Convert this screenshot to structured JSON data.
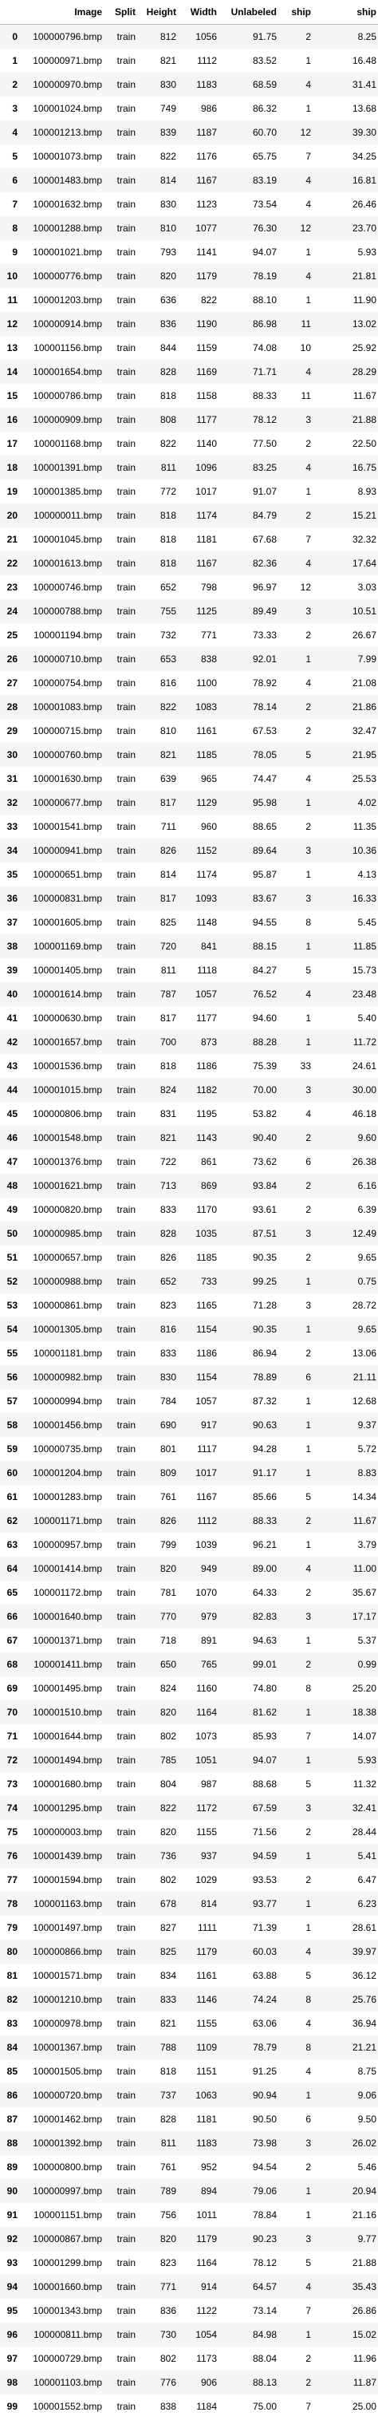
{
  "columns": [
    "",
    "Image",
    "Split",
    "Height",
    "Width",
    "Unlabeled",
    "ship",
    "ship"
  ],
  "rows": [
    [
      "0",
      "100000796.bmp",
      "train",
      "812",
      "1056",
      "91.75",
      "2",
      "8.25"
    ],
    [
      "1",
      "100000971.bmp",
      "train",
      "821",
      "1112",
      "83.52",
      "1",
      "16.48"
    ],
    [
      "2",
      "100000970.bmp",
      "train",
      "830",
      "1183",
      "68.59",
      "4",
      "31.41"
    ],
    [
      "3",
      "100001024.bmp",
      "train",
      "749",
      "986",
      "86.32",
      "1",
      "13.68"
    ],
    [
      "4",
      "100001213.bmp",
      "train",
      "839",
      "1187",
      "60.70",
      "12",
      "39.30"
    ],
    [
      "5",
      "100001073.bmp",
      "train",
      "822",
      "1176",
      "65.75",
      "7",
      "34.25"
    ],
    [
      "6",
      "100001483.bmp",
      "train",
      "814",
      "1167",
      "83.19",
      "4",
      "16.81"
    ],
    [
      "7",
      "100001632.bmp",
      "train",
      "830",
      "1123",
      "73.54",
      "4",
      "26.46"
    ],
    [
      "8",
      "100001288.bmp",
      "train",
      "810",
      "1077",
      "76.30",
      "12",
      "23.70"
    ],
    [
      "9",
      "100001021.bmp",
      "train",
      "793",
      "1141",
      "94.07",
      "1",
      "5.93"
    ],
    [
      "10",
      "100000776.bmp",
      "train",
      "820",
      "1179",
      "78.19",
      "4",
      "21.81"
    ],
    [
      "11",
      "100001203.bmp",
      "train",
      "636",
      "822",
      "88.10",
      "1",
      "11.90"
    ],
    [
      "12",
      "100000914.bmp",
      "train",
      "836",
      "1190",
      "86.98",
      "11",
      "13.02"
    ],
    [
      "13",
      "100001156.bmp",
      "train",
      "844",
      "1159",
      "74.08",
      "10",
      "25.92"
    ],
    [
      "14",
      "100001654.bmp",
      "train",
      "828",
      "1169",
      "71.71",
      "4",
      "28.29"
    ],
    [
      "15",
      "100000786.bmp",
      "train",
      "818",
      "1158",
      "88.33",
      "11",
      "11.67"
    ],
    [
      "16",
      "100000909.bmp",
      "train",
      "808",
      "1177",
      "78.12",
      "3",
      "21.88"
    ],
    [
      "17",
      "100001168.bmp",
      "train",
      "822",
      "1140",
      "77.50",
      "2",
      "22.50"
    ],
    [
      "18",
      "100001391.bmp",
      "train",
      "811",
      "1096",
      "83.25",
      "4",
      "16.75"
    ],
    [
      "19",
      "100001385.bmp",
      "train",
      "772",
      "1017",
      "91.07",
      "1",
      "8.93"
    ],
    [
      "20",
      "100000011.bmp",
      "train",
      "818",
      "1174",
      "84.79",
      "2",
      "15.21"
    ],
    [
      "21",
      "100001045.bmp",
      "train",
      "818",
      "1181",
      "67.68",
      "7",
      "32.32"
    ],
    [
      "22",
      "100001613.bmp",
      "train",
      "818",
      "1167",
      "82.36",
      "4",
      "17.64"
    ],
    [
      "23",
      "100000746.bmp",
      "train",
      "652",
      "798",
      "96.97",
      "12",
      "3.03"
    ],
    [
      "24",
      "100000788.bmp",
      "train",
      "755",
      "1125",
      "89.49",
      "3",
      "10.51"
    ],
    [
      "25",
      "100001194.bmp",
      "train",
      "732",
      "771",
      "73.33",
      "2",
      "26.67"
    ],
    [
      "26",
      "100000710.bmp",
      "train",
      "653",
      "838",
      "92.01",
      "1",
      "7.99"
    ],
    [
      "27",
      "100000754.bmp",
      "train",
      "816",
      "1100",
      "78.92",
      "4",
      "21.08"
    ],
    [
      "28",
      "100001083.bmp",
      "train",
      "822",
      "1083",
      "78.14",
      "2",
      "21.86"
    ],
    [
      "29",
      "100000715.bmp",
      "train",
      "810",
      "1161",
      "67.53",
      "2",
      "32.47"
    ],
    [
      "30",
      "100000760.bmp",
      "train",
      "821",
      "1185",
      "78.05",
      "5",
      "21.95"
    ],
    [
      "31",
      "100001630.bmp",
      "train",
      "639",
      "965",
      "74.47",
      "4",
      "25.53"
    ],
    [
      "32",
      "100000677.bmp",
      "train",
      "817",
      "1129",
      "95.98",
      "1",
      "4.02"
    ],
    [
      "33",
      "100001541.bmp",
      "train",
      "711",
      "960",
      "88.65",
      "2",
      "11.35"
    ],
    [
      "34",
      "100000941.bmp",
      "train",
      "826",
      "1152",
      "89.64",
      "3",
      "10.36"
    ],
    [
      "35",
      "100000651.bmp",
      "train",
      "814",
      "1174",
      "95.87",
      "1",
      "4.13"
    ],
    [
      "36",
      "100000831.bmp",
      "train",
      "817",
      "1093",
      "83.67",
      "3",
      "16.33"
    ],
    [
      "37",
      "100001605.bmp",
      "train",
      "825",
      "1148",
      "94.55",
      "8",
      "5.45"
    ],
    [
      "38",
      "100001169.bmp",
      "train",
      "720",
      "841",
      "88.15",
      "1",
      "11.85"
    ],
    [
      "39",
      "100001405.bmp",
      "train",
      "811",
      "1118",
      "84.27",
      "5",
      "15.73"
    ],
    [
      "40",
      "100001614.bmp",
      "train",
      "787",
      "1057",
      "76.52",
      "4",
      "23.48"
    ],
    [
      "41",
      "100000630.bmp",
      "train",
      "817",
      "1177",
      "94.60",
      "1",
      "5.40"
    ],
    [
      "42",
      "100001657.bmp",
      "train",
      "700",
      "873",
      "88.28",
      "1",
      "11.72"
    ],
    [
      "43",
      "100001536.bmp",
      "train",
      "818",
      "1186",
      "75.39",
      "33",
      "24.61"
    ],
    [
      "44",
      "100001015.bmp",
      "train",
      "824",
      "1182",
      "70.00",
      "3",
      "30.00"
    ],
    [
      "45",
      "100000806.bmp",
      "train",
      "831",
      "1195",
      "53.82",
      "4",
      "46.18"
    ],
    [
      "46",
      "100001548.bmp",
      "train",
      "821",
      "1143",
      "90.40",
      "2",
      "9.60"
    ],
    [
      "47",
      "100001376.bmp",
      "train",
      "722",
      "861",
      "73.62",
      "6",
      "26.38"
    ],
    [
      "48",
      "100001621.bmp",
      "train",
      "713",
      "869",
      "93.84",
      "2",
      "6.16"
    ],
    [
      "49",
      "100000820.bmp",
      "train",
      "833",
      "1170",
      "93.61",
      "2",
      "6.39"
    ],
    [
      "50",
      "100000985.bmp",
      "train",
      "828",
      "1035",
      "87.51",
      "3",
      "12.49"
    ],
    [
      "51",
      "100000657.bmp",
      "train",
      "826",
      "1185",
      "90.35",
      "2",
      "9.65"
    ],
    [
      "52",
      "100000988.bmp",
      "train",
      "652",
      "733",
      "99.25",
      "1",
      "0.75"
    ],
    [
      "53",
      "100000861.bmp",
      "train",
      "823",
      "1165",
      "71.28",
      "3",
      "28.72"
    ],
    [
      "54",
      "100001305.bmp",
      "train",
      "816",
      "1154",
      "90.35",
      "1",
      "9.65"
    ],
    [
      "55",
      "100001181.bmp",
      "train",
      "833",
      "1186",
      "86.94",
      "2",
      "13.06"
    ],
    [
      "56",
      "100000982.bmp",
      "train",
      "830",
      "1154",
      "78.89",
      "6",
      "21.11"
    ],
    [
      "57",
      "100000994.bmp",
      "train",
      "784",
      "1057",
      "87.32",
      "1",
      "12.68"
    ],
    [
      "58",
      "100001456.bmp",
      "train",
      "690",
      "917",
      "90.63",
      "1",
      "9.37"
    ],
    [
      "59",
      "100000735.bmp",
      "train",
      "801",
      "1117",
      "94.28",
      "1",
      "5.72"
    ],
    [
      "60",
      "100001204.bmp",
      "train",
      "809",
      "1017",
      "91.17",
      "1",
      "8.83"
    ],
    [
      "61",
      "100001283.bmp",
      "train",
      "761",
      "1167",
      "85.66",
      "5",
      "14.34"
    ],
    [
      "62",
      "100001171.bmp",
      "train",
      "826",
      "1112",
      "88.33",
      "2",
      "11.67"
    ],
    [
      "63",
      "100000957.bmp",
      "train",
      "799",
      "1039",
      "96.21",
      "1",
      "3.79"
    ],
    [
      "64",
      "100001414.bmp",
      "train",
      "820",
      "949",
      "89.00",
      "4",
      "11.00"
    ],
    [
      "65",
      "100001172.bmp",
      "train",
      "781",
      "1070",
      "64.33",
      "2",
      "35.67"
    ],
    [
      "66",
      "100001640.bmp",
      "train",
      "770",
      "979",
      "82.83",
      "3",
      "17.17"
    ],
    [
      "67",
      "100001371.bmp",
      "train",
      "718",
      "891",
      "94.63",
      "1",
      "5.37"
    ],
    [
      "68",
      "100001411.bmp",
      "train",
      "650",
      "765",
      "99.01",
      "2",
      "0.99"
    ],
    [
      "69",
      "100001495.bmp",
      "train",
      "824",
      "1160",
      "74.80",
      "8",
      "25.20"
    ],
    [
      "70",
      "100001510.bmp",
      "train",
      "820",
      "1164",
      "81.62",
      "1",
      "18.38"
    ],
    [
      "71",
      "100001644.bmp",
      "train",
      "802",
      "1073",
      "85.93",
      "7",
      "14.07"
    ],
    [
      "72",
      "100001494.bmp",
      "train",
      "785",
      "1051",
      "94.07",
      "1",
      "5.93"
    ],
    [
      "73",
      "100001680.bmp",
      "train",
      "804",
      "987",
      "88.68",
      "5",
      "11.32"
    ],
    [
      "74",
      "100001295.bmp",
      "train",
      "822",
      "1172",
      "67.59",
      "3",
      "32.41"
    ],
    [
      "75",
      "100000003.bmp",
      "train",
      "820",
      "1155",
      "71.56",
      "2",
      "28.44"
    ],
    [
      "76",
      "100001439.bmp",
      "train",
      "736",
      "937",
      "94.59",
      "1",
      "5.41"
    ],
    [
      "77",
      "100001594.bmp",
      "train",
      "802",
      "1029",
      "93.53",
      "2",
      "6.47"
    ],
    [
      "78",
      "100001163.bmp",
      "train",
      "678",
      "814",
      "93.77",
      "1",
      "6.23"
    ],
    [
      "79",
      "100001497.bmp",
      "train",
      "827",
      "1111",
      "71.39",
      "1",
      "28.61"
    ],
    [
      "80",
      "100000866.bmp",
      "train",
      "825",
      "1179",
      "60.03",
      "4",
      "39.97"
    ],
    [
      "81",
      "100001571.bmp",
      "train",
      "834",
      "1161",
      "63.88",
      "5",
      "36.12"
    ],
    [
      "82",
      "100001210.bmp",
      "train",
      "833",
      "1146",
      "74.24",
      "8",
      "25.76"
    ],
    [
      "83",
      "100000978.bmp",
      "train",
      "821",
      "1155",
      "63.06",
      "4",
      "36.94"
    ],
    [
      "84",
      "100001367.bmp",
      "train",
      "788",
      "1109",
      "78.79",
      "8",
      "21.21"
    ],
    [
      "85",
      "100001505.bmp",
      "train",
      "818",
      "1151",
      "91.25",
      "4",
      "8.75"
    ],
    [
      "86",
      "100000720.bmp",
      "train",
      "737",
      "1063",
      "90.94",
      "1",
      "9.06"
    ],
    [
      "87",
      "100001462.bmp",
      "train",
      "828",
      "1181",
      "90.50",
      "6",
      "9.50"
    ],
    [
      "88",
      "100001392.bmp",
      "train",
      "811",
      "1183",
      "73.98",
      "3",
      "26.02"
    ],
    [
      "89",
      "100000800.bmp",
      "train",
      "761",
      "952",
      "94.54",
      "2",
      "5.46"
    ],
    [
      "90",
      "100000997.bmp",
      "train",
      "789",
      "894",
      "79.06",
      "1",
      "20.94"
    ],
    [
      "91",
      "100001151.bmp",
      "train",
      "756",
      "1011",
      "78.84",
      "1",
      "21.16"
    ],
    [
      "92",
      "100000867.bmp",
      "train",
      "820",
      "1179",
      "90.23",
      "3",
      "9.77"
    ],
    [
      "93",
      "100001299.bmp",
      "train",
      "823",
      "1164",
      "78.12",
      "5",
      "21.88"
    ],
    [
      "94",
      "100001660.bmp",
      "train",
      "771",
      "914",
      "64.57",
      "4",
      "35.43"
    ],
    [
      "95",
      "100001343.bmp",
      "train",
      "836",
      "1122",
      "73.14",
      "7",
      "26.86"
    ],
    [
      "96",
      "100000811.bmp",
      "train",
      "730",
      "1054",
      "84.98",
      "1",
      "15.02"
    ],
    [
      "97",
      "100000729.bmp",
      "train",
      "802",
      "1173",
      "88.04",
      "2",
      "11.96"
    ],
    [
      "98",
      "100001103.bmp",
      "train",
      "776",
      "906",
      "88.13",
      "2",
      "11.87"
    ],
    [
      "99",
      "100001552.bmp",
      "train",
      "838",
      "1184",
      "75.00",
      "7",
      "25.00"
    ]
  ]
}
